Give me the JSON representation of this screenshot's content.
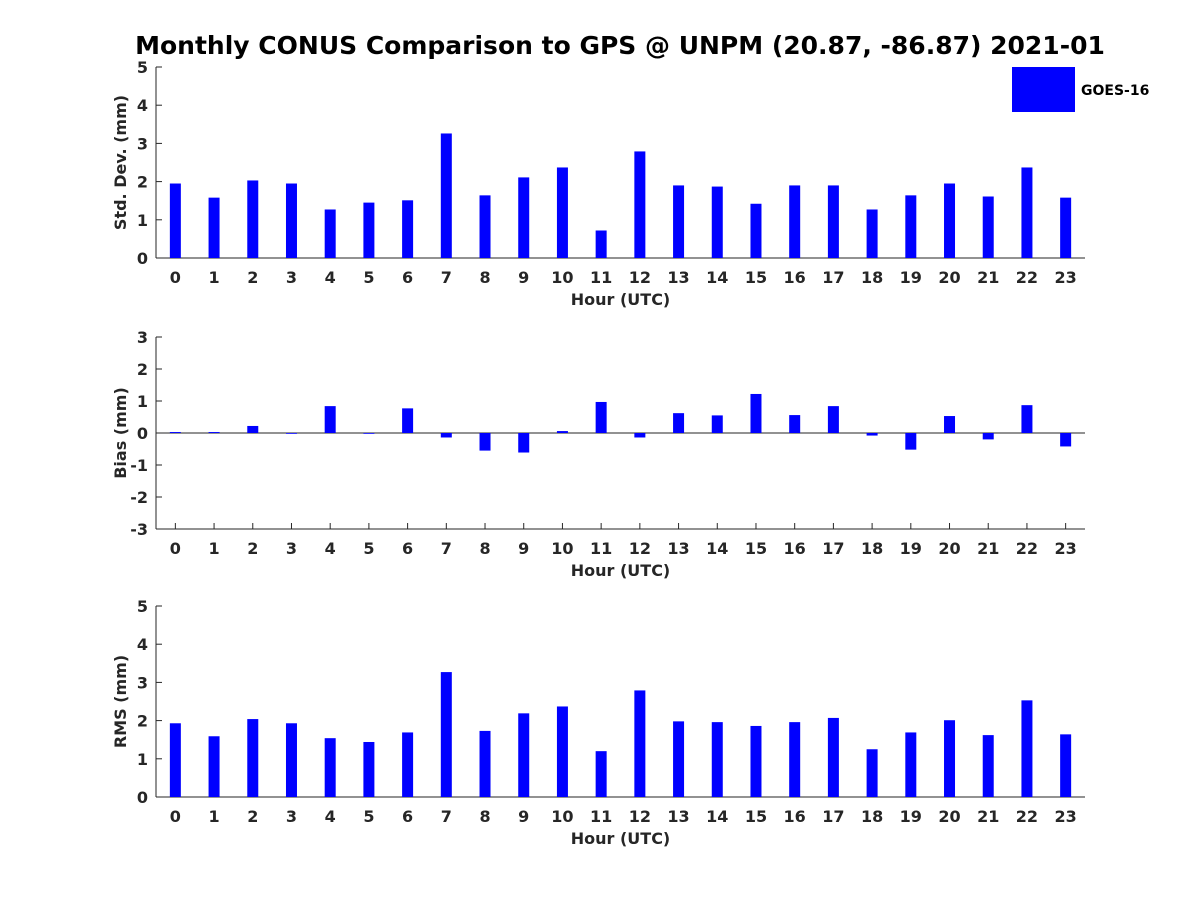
{
  "title": "Monthly CONUS Comparison to GPS @ UNPM (20.87, -86.87) 2021-01",
  "legend": {
    "label": "GOES-16",
    "color": "#0000ff"
  },
  "chart_data": [
    {
      "type": "bar",
      "xlabel": "Hour (UTC)",
      "ylabel": "Std. Dev. (mm)",
      "ylim": [
        0,
        5
      ],
      "yticks": [
        "0",
        "1",
        "2",
        "3",
        "4",
        "5"
      ],
      "categories": [
        "0",
        "1",
        "2",
        "3",
        "4",
        "5",
        "6",
        "7",
        "8",
        "9",
        "10",
        "11",
        "12",
        "13",
        "14",
        "15",
        "16",
        "17",
        "18",
        "19",
        "20",
        "21",
        "22",
        "23"
      ],
      "series": [
        {
          "name": "GOES-16",
          "values": [
            1.95,
            1.58,
            2.03,
            1.95,
            1.27,
            1.45,
            1.51,
            3.26,
            1.64,
            2.11,
            2.37,
            0.72,
            2.79,
            1.9,
            1.87,
            1.42,
            1.9,
            1.9,
            1.27,
            1.64,
            1.95,
            1.61,
            2.37,
            1.58
          ]
        }
      ]
    },
    {
      "type": "bar",
      "xlabel": "Hour (UTC)",
      "ylabel": "Bias (mm)",
      "ylim": [
        -3,
        3
      ],
      "yticks": [
        "-3",
        "-2",
        "-1",
        "0",
        "1",
        "2",
        "3"
      ],
      "categories": [
        "0",
        "1",
        "2",
        "3",
        "4",
        "5",
        "6",
        "7",
        "8",
        "9",
        "10",
        "11",
        "12",
        "13",
        "14",
        "15",
        "16",
        "17",
        "18",
        "19",
        "20",
        "21",
        "22",
        "23"
      ],
      "series": [
        {
          "name": "GOES-16",
          "values": [
            0.03,
            0.03,
            0.22,
            -0.02,
            0.84,
            0.0,
            0.77,
            -0.14,
            -0.55,
            -0.61,
            0.06,
            0.97,
            -0.14,
            0.62,
            0.55,
            1.22,
            0.56,
            0.84,
            -0.08,
            -0.52,
            0.53,
            -0.2,
            0.87,
            -0.42
          ]
        }
      ]
    },
    {
      "type": "bar",
      "xlabel": "Hour (UTC)",
      "ylabel": "RMS (mm)",
      "ylim": [
        0,
        5
      ],
      "yticks": [
        "0",
        "1",
        "2",
        "3",
        "4",
        "5"
      ],
      "categories": [
        "0",
        "1",
        "2",
        "3",
        "4",
        "5",
        "6",
        "7",
        "8",
        "9",
        "10",
        "11",
        "12",
        "13",
        "14",
        "15",
        "16",
        "17",
        "18",
        "19",
        "20",
        "21",
        "22",
        "23"
      ],
      "series": [
        {
          "name": "GOES-16",
          "values": [
            1.93,
            1.59,
            2.04,
            1.93,
            1.54,
            1.44,
            1.69,
            3.27,
            1.73,
            2.19,
            2.37,
            1.2,
            2.79,
            1.98,
            1.96,
            1.86,
            1.96,
            2.07,
            1.25,
            1.69,
            2.01,
            1.62,
            2.53,
            1.64
          ]
        }
      ]
    }
  ]
}
